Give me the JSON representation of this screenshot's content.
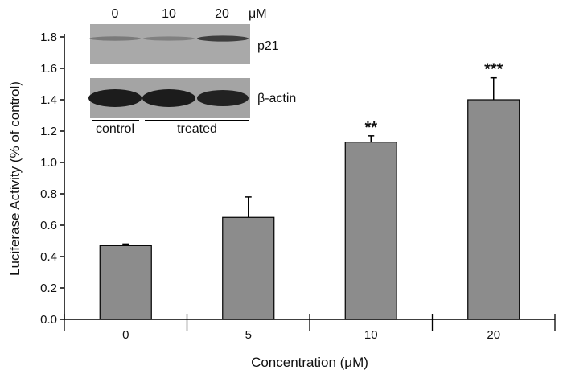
{
  "chart_data": {
    "type": "bar",
    "title": "",
    "xlabel": "Concentration (μM)",
    "ylabel": "Luciferase Activity (% of control)",
    "categories": [
      "0",
      "5",
      "10",
      "20"
    ],
    "values": [
      0.47,
      0.65,
      1.13,
      1.4
    ],
    "error_upper": [
      0.01,
      0.13,
      0.04,
      0.14
    ],
    "significance": [
      "",
      "",
      "**",
      "***"
    ],
    "ylim": [
      0.0,
      1.8
    ],
    "yticks": [
      "0.0",
      "0.2",
      "0.4",
      "0.6",
      "0.8",
      "1.0",
      "1.2",
      "1.4",
      "1.6",
      "1.8"
    ],
    "bar_color": "#8c8c8c",
    "grid": false
  },
  "inset": {
    "lane_labels": [
      "0",
      "10",
      "20"
    ],
    "unit": "μM",
    "bands": [
      "p21",
      "β-actin"
    ],
    "group_labels": [
      "control",
      "treated"
    ],
    "p21_intensity": [
      0.35,
      0.3,
      0.8
    ]
  }
}
